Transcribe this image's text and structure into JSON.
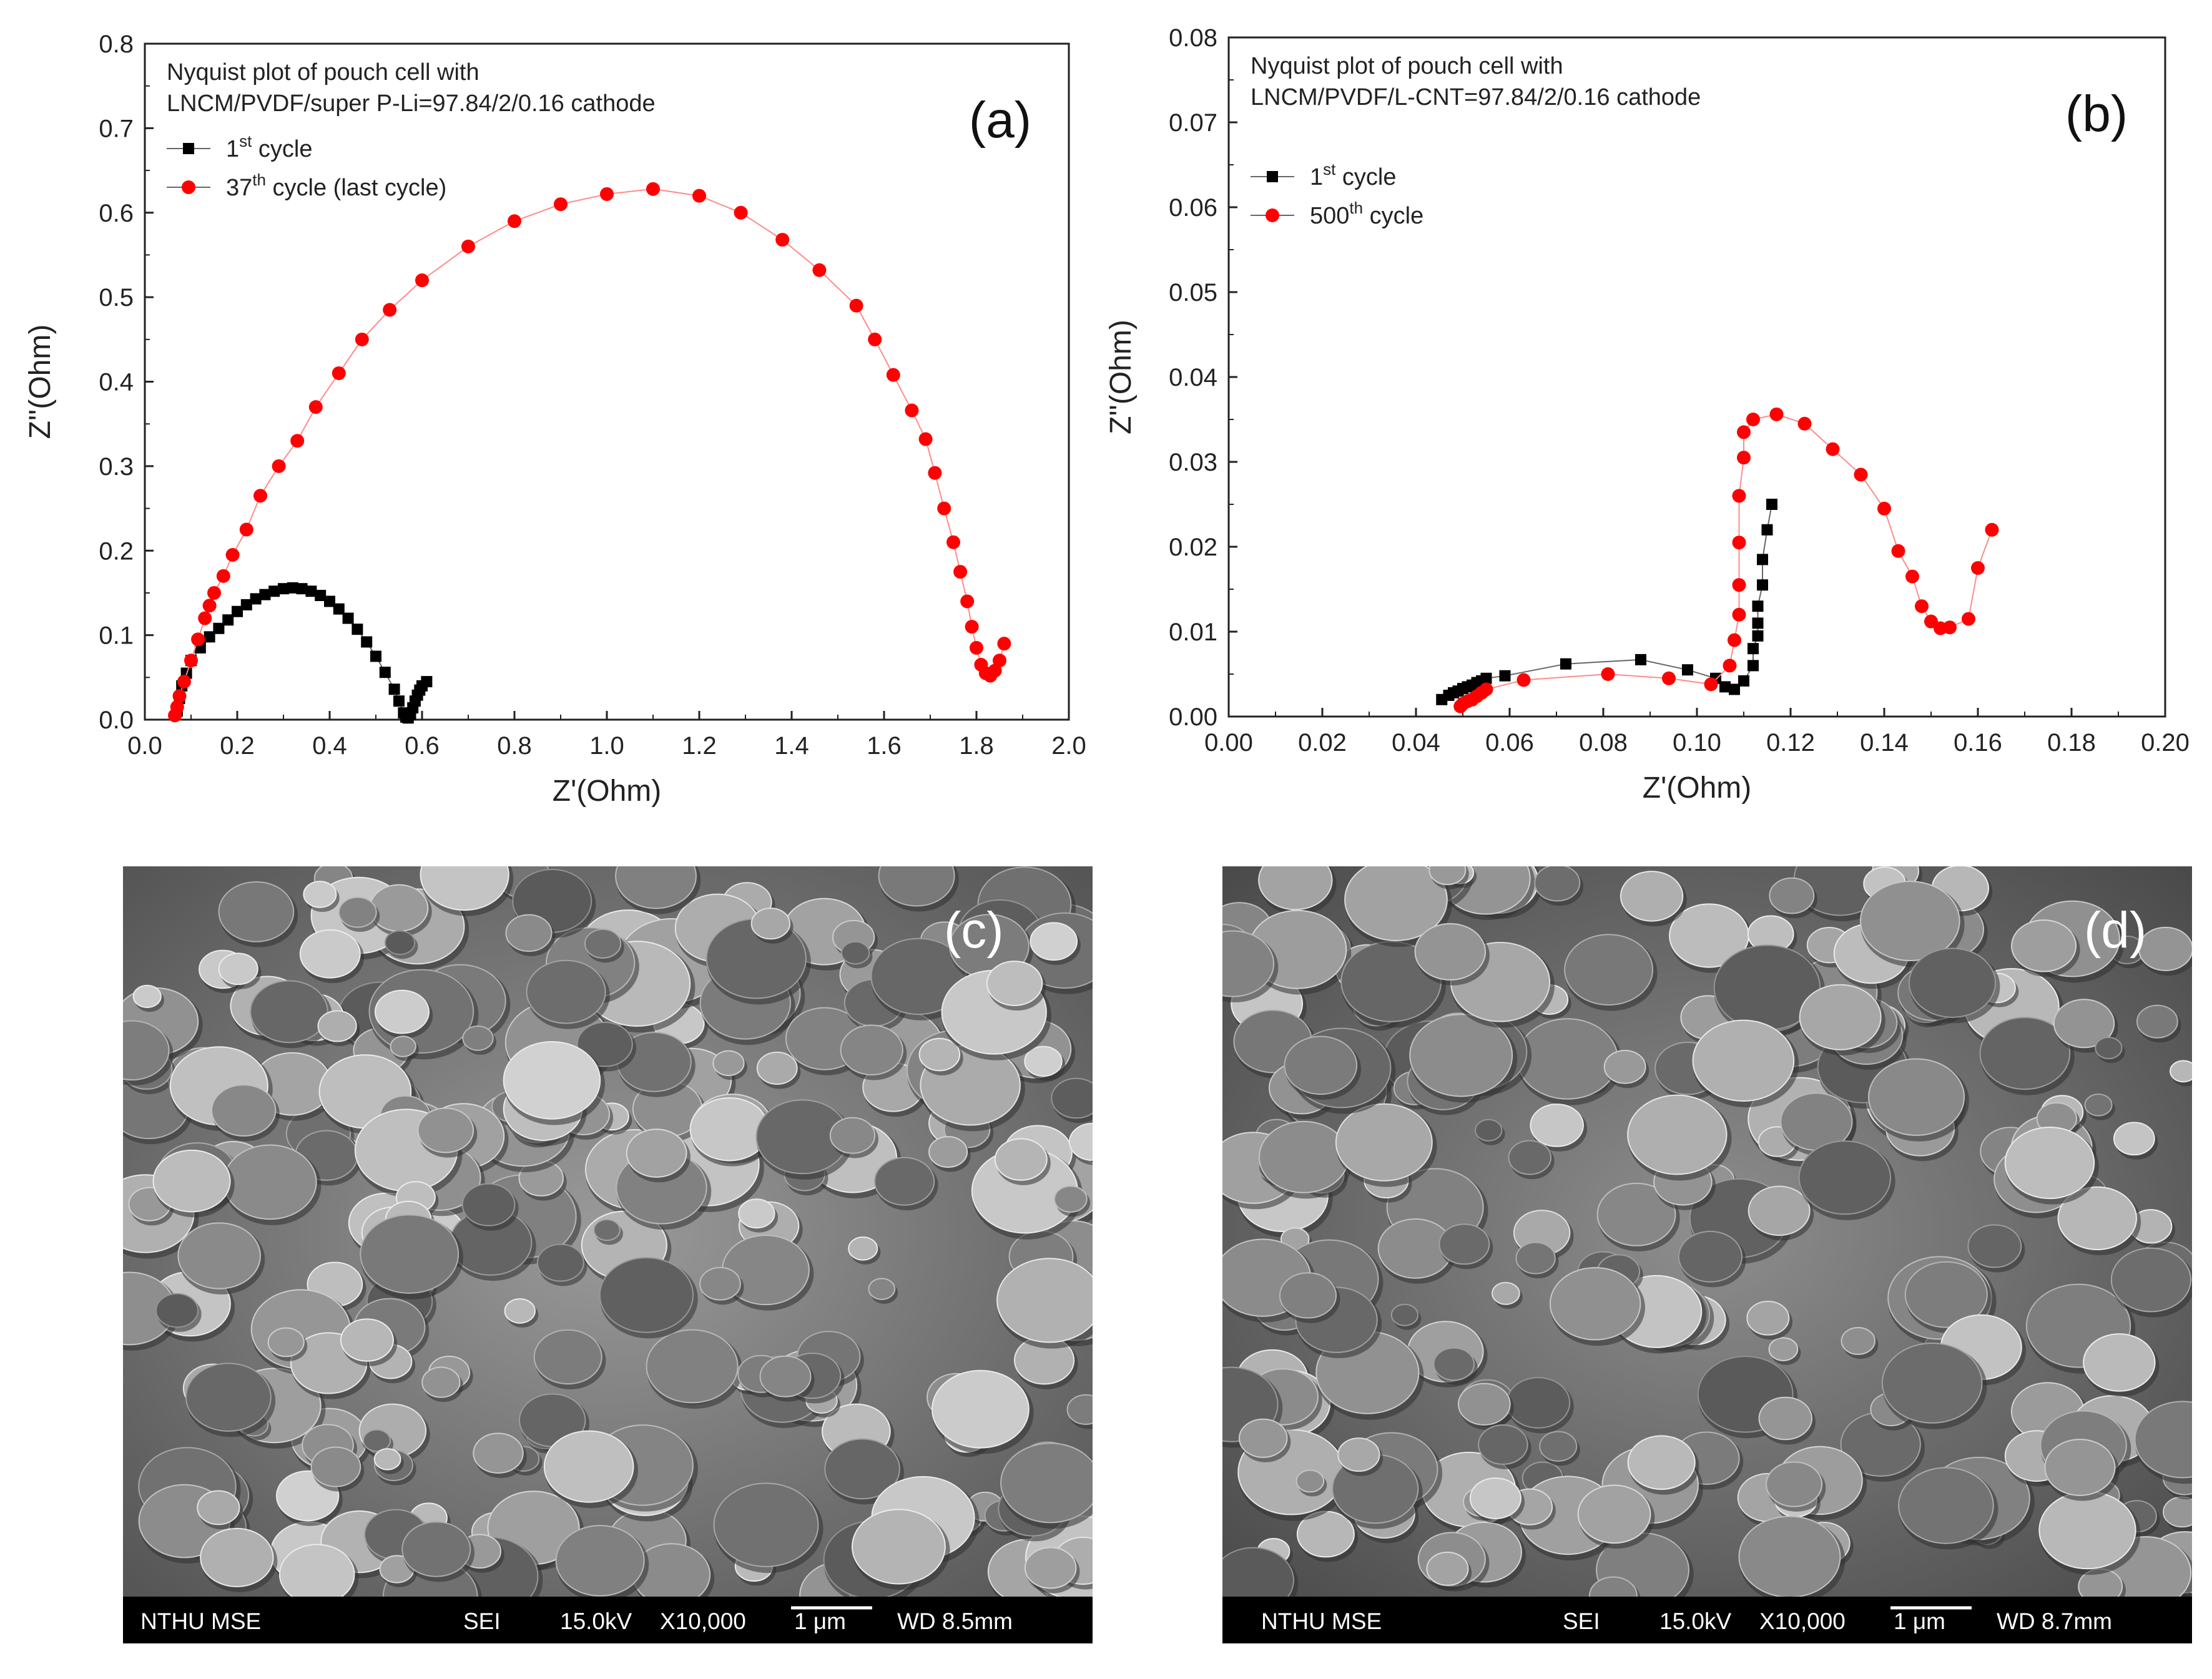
{
  "chart_data": [
    {
      "type": "scatter",
      "panel_label": "(a)",
      "title_lines": [
        "Nyquist plot of pouch cell with",
        "LNCM/PVDF/super P-Li=97.84/2/0.16 cathode"
      ],
      "xlabel": "Z'(Ohm)",
      "ylabel": "Z''(Ohm)",
      "xlim": [
        0.0,
        2.0
      ],
      "ylim": [
        0.0,
        0.8
      ],
      "xticks": [
        "0.0",
        "0.2",
        "0.4",
        "0.6",
        "0.8",
        "1.0",
        "1.2",
        "1.4",
        "1.6",
        "1.8",
        "2.0"
      ],
      "yticks": [
        "0.0",
        "0.1",
        "0.2",
        "0.3",
        "0.4",
        "0.5",
        "0.6",
        "0.7",
        "0.8"
      ],
      "legend_position": "top-left",
      "series": [
        {
          "name": "1st cycle",
          "name_base": "1",
          "name_sup": "st",
          "name_rest": " cycle",
          "color": "#000000",
          "marker": "square",
          "x": [
            0.07,
            0.075,
            0.08,
            0.09,
            0.1,
            0.12,
            0.14,
            0.16,
            0.18,
            0.2,
            0.22,
            0.24,
            0.26,
            0.28,
            0.3,
            0.32,
            0.34,
            0.36,
            0.38,
            0.4,
            0.42,
            0.44,
            0.46,
            0.48,
            0.5,
            0.52,
            0.54,
            0.55,
            0.56,
            0.565,
            0.57,
            0.575,
            0.58,
            0.585,
            0.59,
            0.595,
            0.6,
            0.61
          ],
          "y": [
            0.01,
            0.025,
            0.04,
            0.055,
            0.07,
            0.085,
            0.098,
            0.108,
            0.118,
            0.128,
            0.136,
            0.143,
            0.148,
            0.152,
            0.155,
            0.156,
            0.155,
            0.152,
            0.147,
            0.14,
            0.131,
            0.12,
            0.107,
            0.092,
            0.075,
            0.056,
            0.036,
            0.022,
            0.008,
            0.003,
            0.002,
            0.006,
            0.014,
            0.022,
            0.029,
            0.035,
            0.04,
            0.045
          ]
        },
        {
          "name": "37th cycle (last cycle)",
          "name_base": "37",
          "name_sup": "th",
          "name_rest": " cycle (last cycle)",
          "color": "#ff0000",
          "marker": "circle",
          "x": [
            0.065,
            0.07,
            0.075,
            0.085,
            0.1,
            0.115,
            0.13,
            0.14,
            0.15,
            0.17,
            0.19,
            0.22,
            0.25,
            0.29,
            0.33,
            0.37,
            0.42,
            0.47,
            0.53,
            0.6,
            0.7,
            0.8,
            0.9,
            1.0,
            1.1,
            1.2,
            1.29,
            1.38,
            1.46,
            1.54,
            1.58,
            1.62,
            1.66,
            1.69,
            1.71,
            1.73,
            1.75,
            1.765,
            1.78,
            1.79,
            1.8,
            1.81,
            1.82,
            1.83,
            1.84,
            1.85,
            1.86
          ],
          "y": [
            0.005,
            0.015,
            0.028,
            0.045,
            0.07,
            0.095,
            0.12,
            0.135,
            0.15,
            0.17,
            0.195,
            0.225,
            0.265,
            0.3,
            0.33,
            0.37,
            0.41,
            0.45,
            0.485,
            0.52,
            0.56,
            0.59,
            0.61,
            0.622,
            0.628,
            0.62,
            0.6,
            0.568,
            0.532,
            0.49,
            0.45,
            0.408,
            0.366,
            0.332,
            0.292,
            0.25,
            0.21,
            0.175,
            0.14,
            0.11,
            0.085,
            0.065,
            0.055,
            0.052,
            0.058,
            0.07,
            0.09
          ]
        }
      ]
    },
    {
      "type": "scatter",
      "panel_label": "(b)",
      "title_lines": [
        "Nyquist plot of pouch cell with",
        "LNCM/PVDF/L-CNT=97.84/2/0.16 cathode"
      ],
      "xlabel": "Z'(Ohm)",
      "ylabel": "Z''(Ohm)",
      "xlim": [
        0.0,
        0.2
      ],
      "ylim": [
        0.0,
        0.08
      ],
      "xticks": [
        "0.00",
        "0.02",
        "0.04",
        "0.06",
        "0.08",
        "0.10",
        "0.12",
        "0.14",
        "0.16",
        "0.18",
        "0.20"
      ],
      "yticks": [
        "0.00",
        "0.01",
        "0.02",
        "0.03",
        "0.04",
        "0.05",
        "0.06",
        "0.07",
        "0.08"
      ],
      "legend_position": "top-left",
      "series": [
        {
          "name": "1st cycle",
          "name_base": "1",
          "name_sup": "st",
          "name_rest": " cycle",
          "color": "#000000",
          "marker": "square",
          "x": [
            0.0455,
            0.047,
            0.048,
            0.049,
            0.05,
            0.051,
            0.052,
            0.053,
            0.054,
            0.055,
            0.059,
            0.072,
            0.088,
            0.098,
            0.104,
            0.106,
            0.108,
            0.11,
            0.112,
            0.112,
            0.113,
            0.113,
            0.113,
            0.114,
            0.114,
            0.115,
            0.116
          ],
          "y": [
            0.002,
            0.0025,
            0.0028,
            0.003,
            0.0033,
            0.0035,
            0.0037,
            0.004,
            0.0042,
            0.0045,
            0.0048,
            0.0062,
            0.0067,
            0.0055,
            0.0045,
            0.0035,
            0.0032,
            0.0042,
            0.006,
            0.008,
            0.0095,
            0.011,
            0.013,
            0.0155,
            0.0185,
            0.022,
            0.025
          ]
        },
        {
          "name": "500th cycle",
          "name_base": "500",
          "name_sup": "th",
          "name_rest": " cycle",
          "color": "#ff0000",
          "marker": "circle",
          "x": [
            0.0495,
            0.05,
            0.051,
            0.052,
            0.053,
            0.054,
            0.055,
            0.063,
            0.081,
            0.094,
            0.103,
            0.107,
            0.108,
            0.109,
            0.109,
            0.109,
            0.109,
            0.11,
            0.11,
            0.112,
            0.117,
            0.123,
            0.129,
            0.135,
            0.14,
            0.143,
            0.146,
            0.148,
            0.15,
            0.152,
            0.154,
            0.158,
            0.16,
            0.163
          ],
          "y": [
            0.0012,
            0.0015,
            0.0018,
            0.002,
            0.0024,
            0.0028,
            0.0032,
            0.0043,
            0.005,
            0.0045,
            0.0038,
            0.006,
            0.009,
            0.012,
            0.0155,
            0.0205,
            0.026,
            0.0305,
            0.0335,
            0.035,
            0.0356,
            0.0345,
            0.0315,
            0.0285,
            0.0245,
            0.0195,
            0.0165,
            0.013,
            0.0112,
            0.0104,
            0.0105,
            0.0115,
            0.0175,
            0.022
          ]
        }
      ]
    }
  ],
  "sem_images": [
    {
      "panel_label": "(c)",
      "databar": {
        "lab": "NTHU MSE",
        "mode": "SEI",
        "voltage": "15.0kV",
        "magnification": "X10,000",
        "scale": "1 μm",
        "wd": "WD 8.5mm"
      }
    },
    {
      "panel_label": "(d)",
      "databar": {
        "lab": "NTHU MSE",
        "mode": "SEI",
        "voltage": "15.0kV",
        "magnification": "X10,000",
        "scale": "1 μm",
        "wd": "WD 8.7mm"
      }
    }
  ]
}
